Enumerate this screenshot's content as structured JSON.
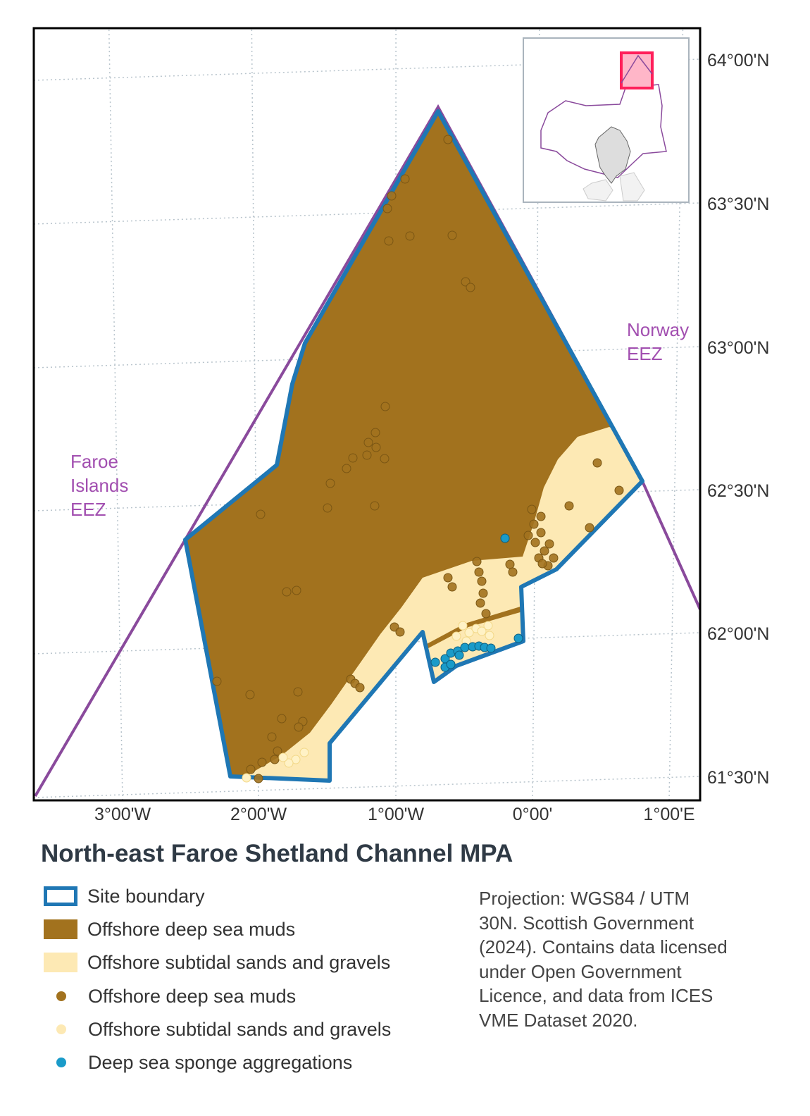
{
  "title": "North-east Faroe Shetland Channel MPA",
  "map": {
    "lat_labels": [
      "64°00'N",
      "63°30'N",
      "63°00'N",
      "62°30'N",
      "62°00'N",
      "61°30'N"
    ],
    "lon_labels": [
      "3°00'W",
      "2°00'W",
      "1°00'W",
      "0°00'",
      "1°00'E"
    ],
    "eez_labels": {
      "faroe": [
        "Faroe",
        "Islands",
        "EEZ"
      ],
      "norway": [
        "Norway",
        "EEZ"
      ]
    },
    "colors": {
      "boundary": "#1f77b4",
      "muds": "#a2721e",
      "sands": "#fde9b4",
      "sponge": "#1a9bc9",
      "eez": "#8a4a9c",
      "inset_box": "#ff1f5a"
    }
  },
  "legend": [
    {
      "label": "Site boundary",
      "symbol": "outline-box",
      "color": "#1f77b4"
    },
    {
      "label": "Offshore deep sea muds",
      "symbol": "filled-box",
      "color": "#a2721e"
    },
    {
      "label": "Offshore subtidal sands and gravels",
      "symbol": "filled-box",
      "color": "#fde9b4"
    },
    {
      "label": "Offshore deep sea muds",
      "symbol": "point",
      "color": "#a2721e"
    },
    {
      "label": "Offshore subtidal sands and gravels",
      "symbol": "point",
      "color": "#fde9b4"
    },
    {
      "label": "Deep sea sponge aggregations",
      "symbol": "point",
      "color": "#1a9bc9"
    }
  ],
  "credit": "Projection: WGS84 / UTM 30N. Scottish Government (2024). Contains data licensed under Open Government Licence, and data from ICES VME Dataset 2020."
}
